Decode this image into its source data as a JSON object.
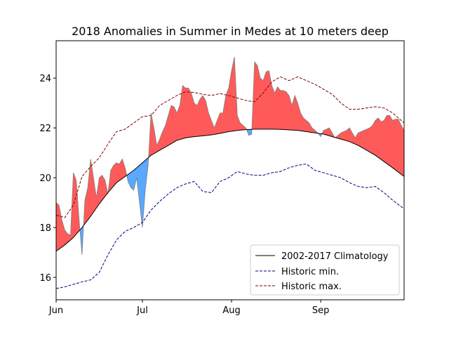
{
  "chart_data": {
    "type": "area",
    "title": "2018 Anomalies in Summer in Medes at 10 meters deep",
    "xlabel": "",
    "ylabel": "",
    "xlim": [
      0,
      121
    ],
    "ylim": [
      15.1,
      25.5
    ],
    "x_ticks": [
      {
        "label": "Jun",
        "day": 0
      },
      {
        "label": "Jul",
        "day": 30
      },
      {
        "label": "Aug",
        "day": 61
      },
      {
        "label": "Sep",
        "day": 92
      }
    ],
    "y_ticks": [
      16,
      18,
      20,
      22,
      24
    ],
    "legend": {
      "placement": "lower-right",
      "entries": [
        {
          "label": "2002-2017 Climatology",
          "style": "solid",
          "color": "#000000"
        },
        {
          "label": "Historic min.",
          "style": "dashed",
          "color": "#000080"
        },
        {
          "label": "Historic max.",
          "style": "dashed",
          "color": "#800000"
        }
      ]
    },
    "colors": {
      "warm_anomaly": "#ff5a5a",
      "cold_anomaly": "#5aa8ff",
      "observed_line": "#808080",
      "climatology": "#000000",
      "historic_min": "#000080",
      "historic_max": "#800000"
    },
    "series": [
      {
        "name": "2002-2017 Climatology",
        "x": [
          0,
          3,
          6,
          9,
          12,
          15,
          18,
          21,
          24,
          27,
          30,
          33,
          36,
          39,
          42,
          45,
          48,
          51,
          54,
          57,
          60,
          63,
          66,
          69,
          72,
          75,
          78,
          81,
          84,
          87,
          90,
          93,
          96,
          99,
          102,
          105,
          108,
          111,
          114,
          117,
          121
        ],
        "values": [
          17.05,
          17.3,
          17.6,
          18.0,
          18.45,
          18.95,
          19.4,
          19.8,
          20.05,
          20.3,
          20.6,
          20.9,
          21.1,
          21.3,
          21.5,
          21.6,
          21.65,
          21.68,
          21.72,
          21.78,
          21.85,
          21.9,
          21.93,
          21.95,
          21.95,
          21.95,
          21.94,
          21.92,
          21.9,
          21.85,
          21.8,
          21.75,
          21.65,
          21.55,
          21.45,
          21.3,
          21.1,
          20.9,
          20.65,
          20.4,
          20.05
        ]
      },
      {
        "name": "Historic min.",
        "x": [
          0,
          3,
          6,
          9,
          12,
          15,
          18,
          21,
          24,
          27,
          30,
          33,
          36,
          39,
          42,
          45,
          48,
          51,
          54,
          57,
          60,
          63,
          66,
          69,
          72,
          75,
          78,
          81,
          84,
          87,
          90,
          93,
          96,
          99,
          102,
          105,
          108,
          111,
          114,
          117,
          121
        ],
        "values": [
          15.55,
          15.62,
          15.72,
          15.82,
          15.9,
          16.2,
          16.9,
          17.5,
          17.85,
          18.0,
          18.2,
          18.7,
          19.05,
          19.35,
          19.6,
          19.75,
          19.85,
          19.45,
          19.4,
          19.85,
          20.0,
          20.25,
          20.15,
          20.1,
          20.1,
          20.2,
          20.25,
          20.4,
          20.5,
          20.55,
          20.3,
          20.2,
          20.1,
          20.0,
          19.8,
          19.65,
          19.6,
          19.65,
          19.4,
          19.1,
          18.75
        ]
      },
      {
        "name": "Historic max.",
        "x": [
          0,
          3,
          6,
          9,
          12,
          15,
          18,
          21,
          24,
          27,
          30,
          33,
          36,
          39,
          42,
          45,
          48,
          51,
          54,
          57,
          60,
          63,
          66,
          69,
          72,
          75,
          78,
          81,
          84,
          87,
          90,
          93,
          96,
          99,
          102,
          105,
          108,
          111,
          114,
          117,
          121
        ],
        "values": [
          18.5,
          18.4,
          18.9,
          20.05,
          20.45,
          20.8,
          21.35,
          21.85,
          21.95,
          22.2,
          22.45,
          22.5,
          22.9,
          23.1,
          23.3,
          23.45,
          23.42,
          23.35,
          23.3,
          23.38,
          23.3,
          23.2,
          23.1,
          23.05,
          23.4,
          23.85,
          24.05,
          23.9,
          24.05,
          23.9,
          23.75,
          23.55,
          23.35,
          23.0,
          22.75,
          22.75,
          22.8,
          22.85,
          22.8,
          22.6,
          22.2
        ]
      },
      {
        "name": "",
        "x": [
          0,
          1,
          2,
          3,
          4,
          5,
          6,
          7,
          8,
          9,
          10,
          11,
          12,
          13,
          14,
          15,
          16,
          17,
          18,
          19,
          20,
          21,
          22,
          23,
          24,
          25,
          26,
          27,
          28,
          29,
          30,
          31,
          32,
          33,
          34,
          35,
          36,
          37,
          38,
          39,
          40,
          41,
          42,
          43,
          44,
          45,
          46,
          47,
          48,
          49,
          50,
          51,
          52,
          53,
          54,
          55,
          56,
          57,
          58,
          59,
          60,
          61,
          62,
          63,
          64,
          65,
          66,
          67,
          68,
          69,
          70,
          71,
          72,
          73,
          74,
          75,
          76,
          77,
          78,
          79,
          80,
          81,
          82,
          83,
          84,
          85,
          86,
          87,
          88,
          89,
          90,
          91,
          92,
          93,
          94,
          95,
          96,
          97,
          98,
          99,
          100,
          101,
          102,
          103,
          104,
          105,
          106,
          107,
          108,
          109,
          110,
          111,
          112,
          113,
          114,
          115,
          116,
          117,
          118,
          119,
          120,
          121
        ],
        "values": [
          19.0,
          18.9,
          18.3,
          17.9,
          17.75,
          17.7,
          20.2,
          19.9,
          18.3,
          16.9,
          19.1,
          19.6,
          20.75,
          20.0,
          19.2,
          20.0,
          20.1,
          19.9,
          19.35,
          20.3,
          20.5,
          20.6,
          20.55,
          20.75,
          20.4,
          19.85,
          19.6,
          19.5,
          20.0,
          19.0,
          18.0,
          19.5,
          20.5,
          22.6,
          22.0,
          21.3,
          21.55,
          21.85,
          22.1,
          22.5,
          22.9,
          22.85,
          22.6,
          22.9,
          23.7,
          23.6,
          23.6,
          23.4,
          23.0,
          22.9,
          23.15,
          23.3,
          23.1,
          22.6,
          22.3,
          22.0,
          22.3,
          22.6,
          22.6,
          23.3,
          23.6,
          24.3,
          24.85,
          22.5,
          22.2,
          22.1,
          22.0,
          21.7,
          21.75,
          24.65,
          24.5,
          24.0,
          23.9,
          24.25,
          24.3,
          23.7,
          23.4,
          23.65,
          23.5,
          23.5,
          23.45,
          23.3,
          22.9,
          23.3,
          23.0,
          22.6,
          22.4,
          22.3,
          22.2,
          22.0,
          21.9,
          21.8,
          21.65,
          21.9,
          21.95,
          22.0,
          21.8,
          21.6,
          21.7,
          21.8,
          21.85,
          21.9,
          22.0,
          21.8,
          21.6,
          21.8,
          21.85,
          21.9,
          21.95,
          22.0,
          22.1,
          22.3,
          22.4,
          22.25,
          22.3,
          22.5,
          22.5,
          22.3,
          22.35,
          22.35,
          22.1,
          21.9
        ]
      }
    ]
  }
}
